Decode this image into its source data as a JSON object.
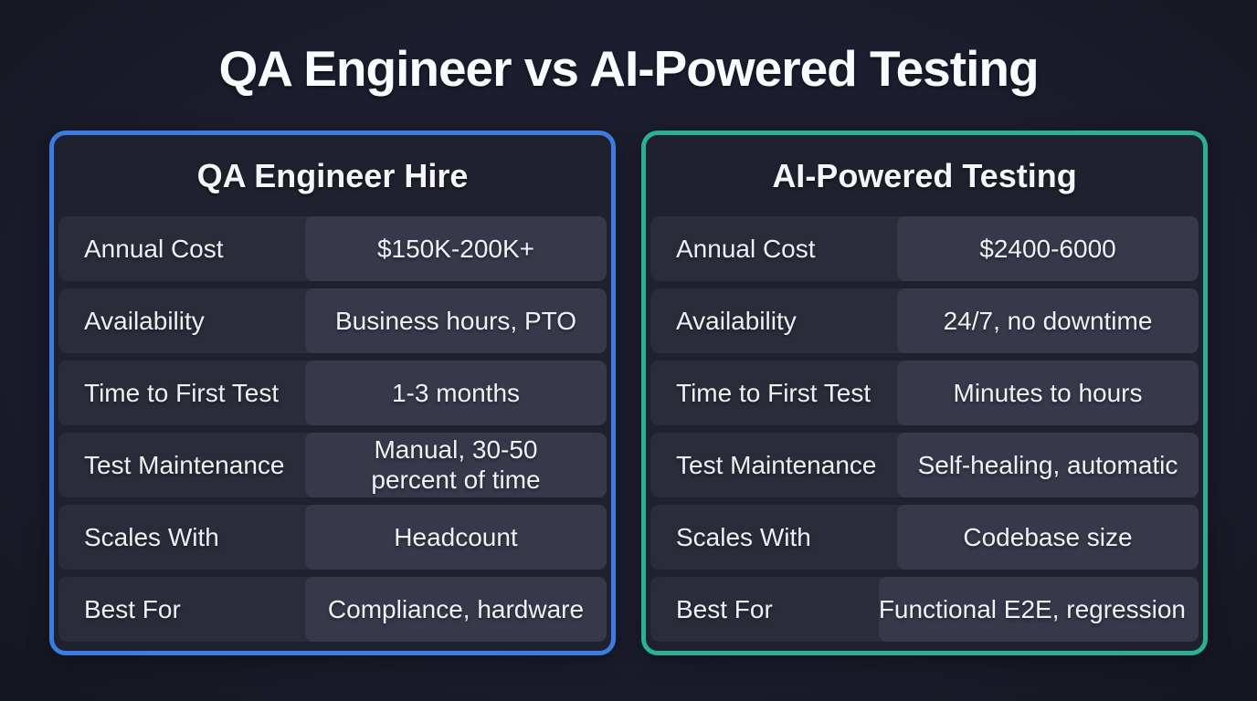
{
  "title": "QA Engineer vs AI-Powered Testing",
  "colors": {
    "page_background": "#1c1d2e",
    "card_background": "#20212e",
    "row_label_background": "#2b2c3a",
    "row_value_background": "#373849",
    "qa_card_border": "#3b7ce0",
    "ai_card_border": "#2bb093",
    "text": "#eef0f4"
  },
  "cards": [
    {
      "title": "QA Engineer Hire",
      "accent": "#3b7ce0",
      "rows": [
        {
          "label": "Annual Cost",
          "value": "$150K-200K+"
        },
        {
          "label": "Availability",
          "value": "Business hours, PTO"
        },
        {
          "label": "Time to First Test",
          "value": "1-3 months"
        },
        {
          "label": "Test Maintenance",
          "value": "Manual, 30-50 percent of time"
        },
        {
          "label": "Scales With",
          "value": "Headcount"
        },
        {
          "label": "Best For",
          "value": "Compliance, hardware"
        }
      ]
    },
    {
      "title": "AI-Powered Testing",
      "accent": "#2bb093",
      "rows": [
        {
          "label": "Annual Cost",
          "value": "$2400-6000"
        },
        {
          "label": "Availability",
          "value": "24/7, no downtime"
        },
        {
          "label": "Time to First Test",
          "value": "Minutes to hours"
        },
        {
          "label": "Test Maintenance",
          "value": "Self-healing, automatic"
        },
        {
          "label": "Scales With",
          "value": "Codebase size"
        },
        {
          "label": "Best For",
          "value": "Functional E2E, regression"
        }
      ]
    }
  ]
}
